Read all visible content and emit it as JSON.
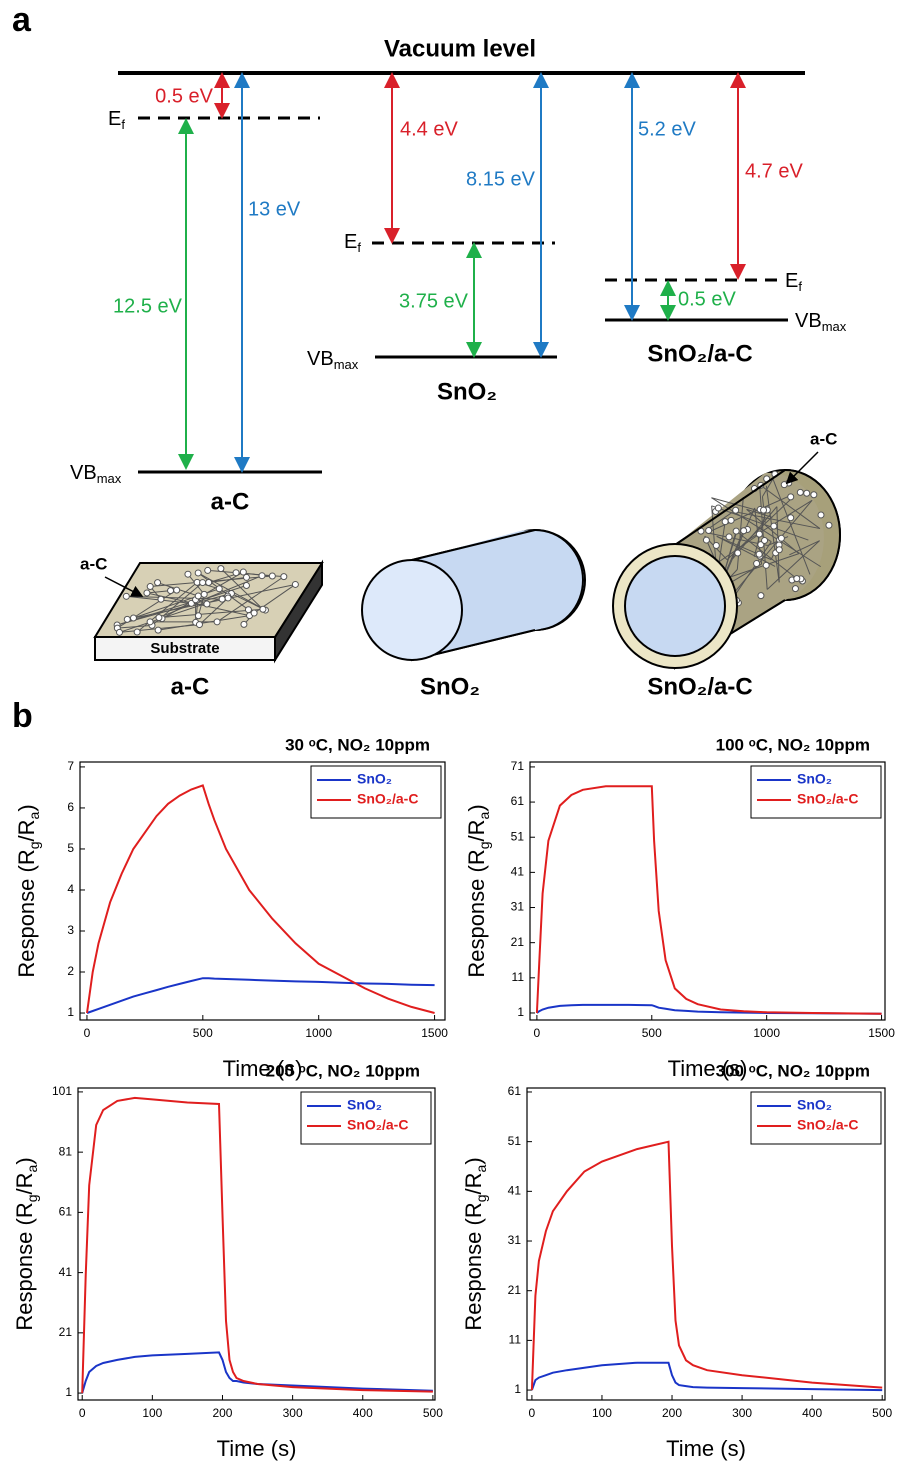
{
  "panel_labels": [
    "a",
    "b"
  ],
  "diagram": {
    "vacuum_level": "Vacuum level",
    "a_c": {
      "gap_vac_ef": "0.5 eV",
      "gap_vac_vb": "13 eV",
      "gap_ef_vb": "12.5 eV",
      "ef": [
        "E",
        "f"
      ],
      "vb": [
        "VB",
        "max"
      ],
      "name": "a-C"
    },
    "sno2": {
      "gap_vac_ef": "4.4 eV",
      "gap_vac_vb": "8.15 eV",
      "gap_ef_vb": "3.75 eV",
      "ef": [
        "E",
        "f"
      ],
      "vb": [
        "VB",
        "max"
      ],
      "name": "SnO₂"
    },
    "sno2_ac": {
      "gap_vac_ef": "4.7 eV",
      "gap_vac_vb": "5.2 eV",
      "gap_ef_vb": "0.5 eV",
      "ef": [
        "E",
        "f"
      ],
      "vb": [
        "VB",
        "max"
      ],
      "name": "SnO₂/a-C"
    },
    "illustration": {
      "coating_label": "a-C",
      "substrate": "Substrate",
      "shell_label": "a-C",
      "captions": [
        "a-C",
        "SnO₂",
        "SnO₂/a-C"
      ]
    }
  },
  "chart_data": [
    {
      "type": "line",
      "title": "30 ᵒC, NO₂ 10ppm",
      "x_label": "Time (s)",
      "y_label": [
        "Response (R",
        "g",
        "/R",
        "a",
        ")"
      ],
      "xlim": [
        -30,
        1545
      ],
      "ylim": [
        0.83,
        7.12
      ],
      "xticks": [
        0,
        500,
        1000,
        1500
      ],
      "yticks": [
        1,
        2,
        3,
        4,
        5,
        6,
        7
      ],
      "grid": false,
      "legend": "upper right",
      "x": [
        0,
        25,
        50,
        100,
        150,
        200,
        250,
        300,
        350,
        400,
        450,
        500,
        525,
        550,
        600,
        700,
        800,
        900,
        1000,
        1100,
        1200,
        1300,
        1400,
        1500
      ],
      "series": [
        {
          "name": "SnO₂",
          "color": "#1a35c8",
          "values": [
            1,
            1.05,
            1.1,
            1.2,
            1.3,
            1.4,
            1.48,
            1.56,
            1.64,
            1.71,
            1.78,
            1.85,
            1.85,
            1.84,
            1.83,
            1.81,
            1.79,
            1.77,
            1.76,
            1.74,
            1.72,
            1.71,
            1.69,
            1.68
          ]
        },
        {
          "name": "SnO₂/a-C",
          "color": "#e01e1e",
          "values": [
            1,
            2.0,
            2.7,
            3.7,
            4.4,
            5.0,
            5.4,
            5.8,
            6.1,
            6.3,
            6.45,
            6.55,
            6.1,
            5.7,
            5.0,
            4.0,
            3.3,
            2.7,
            2.2,
            1.9,
            1.6,
            1.35,
            1.15,
            1.0
          ]
        }
      ]
    },
    {
      "type": "line",
      "title": "100 ᵒC, NO₂ 10ppm",
      "x_label": "Time (s)",
      "y_label": [
        "Response (R",
        "g",
        "/R",
        "a",
        ")"
      ],
      "xlim": [
        -30,
        1515
      ],
      "ylim": [
        -1,
        72.4
      ],
      "xticks": [
        0,
        500,
        1000,
        1500
      ],
      "yticks": [
        1,
        11,
        21,
        31,
        41,
        51,
        61,
        71
      ],
      "grid": false,
      "legend": "upper right",
      "x": [
        0,
        10,
        25,
        50,
        100,
        150,
        200,
        300,
        400,
        500,
        510,
        530,
        560,
        580,
        600,
        650,
        700,
        800,
        900,
        1000,
        1200,
        1500
      ],
      "series": [
        {
          "name": "SnO₂",
          "color": "#1a35c8",
          "values": [
            1,
            1.5,
            2,
            2.5,
            3,
            3.2,
            3.3,
            3.3,
            3.3,
            3.2,
            3,
            2.5,
            2.2,
            2,
            1.8,
            1.6,
            1.4,
            1.2,
            1.1,
            1,
            0.9,
            0.8
          ]
        },
        {
          "name": "SnO₂/a-C",
          "color": "#e01e1e",
          "values": [
            1,
            15,
            35,
            50,
            60,
            63,
            64.5,
            65.5,
            65.5,
            65.5,
            50,
            30,
            16,
            12,
            8,
            5,
            3.5,
            2,
            1.5,
            1.2,
            1,
            0.8
          ]
        }
      ]
    },
    {
      "type": "line",
      "title": "200 ᵒC, NO₂ 10ppm",
      "x_label": "Time (s)",
      "y_label": [
        "Response (R",
        "g",
        "/R",
        "a",
        ")"
      ],
      "xlim": [
        -6,
        503
      ],
      "ylim": [
        -1.3,
        102.3
      ],
      "xticks": [
        0,
        100,
        200,
        300,
        400,
        500
      ],
      "yticks": [
        1,
        21,
        41,
        61,
        81,
        101
      ],
      "grid": false,
      "legend": "upper right",
      "x": [
        0,
        5,
        10,
        20,
        30,
        50,
        75,
        100,
        150,
        195,
        200,
        205,
        210,
        215,
        220,
        230,
        250,
        300,
        400,
        500
      ],
      "series": [
        {
          "name": "SnO₂",
          "color": "#1a35c8",
          "values": [
            1,
            5,
            8,
            10,
            11,
            12,
            13,
            13.5,
            14,
            14.5,
            12,
            8,
            6,
            5,
            5,
            4.5,
            4,
            3.5,
            2.5,
            1.8
          ]
        },
        {
          "name": "SnO₂/a-C",
          "color": "#e01e1e",
          "values": [
            1,
            40,
            70,
            90,
            95,
            98,
            99,
            98.5,
            97.5,
            97,
            60,
            25,
            12,
            8,
            6,
            5,
            4,
            3,
            2,
            1.5
          ]
        }
      ]
    },
    {
      "type": "line",
      "title": "300 ᵒC, NO₂ 10ppm",
      "x_label": "Time (s)",
      "y_label": [
        "Response (R",
        "g",
        "/R",
        "a",
        ")"
      ],
      "xlim": [
        -7,
        504
      ],
      "ylim": [
        -1,
        61.8
      ],
      "xticks": [
        0,
        100,
        200,
        300,
        400,
        500
      ],
      "yticks": [
        1,
        11,
        21,
        31,
        41,
        51,
        61
      ],
      "grid": false,
      "legend": "upper right",
      "x": [
        0,
        5,
        10,
        20,
        30,
        50,
        75,
        100,
        150,
        195,
        200,
        205,
        210,
        220,
        230,
        250,
        300,
        400,
        500
      ],
      "series": [
        {
          "name": "SnO₂",
          "color": "#1a35c8",
          "values": [
            1,
            3,
            3.5,
            4,
            4.5,
            5,
            5.5,
            6,
            6.5,
            6.5,
            4,
            2.5,
            2,
            1.8,
            1.6,
            1.5,
            1.4,
            1.2,
            1
          ]
        },
        {
          "name": "SnO₂/a-C",
          "color": "#e01e1e",
          "values": [
            1,
            20,
            27,
            33,
            37,
            41,
            45,
            47,
            49.5,
            51,
            30,
            15,
            10,
            7,
            6,
            5,
            4,
            2.5,
            1.5
          ]
        }
      ]
    }
  ]
}
